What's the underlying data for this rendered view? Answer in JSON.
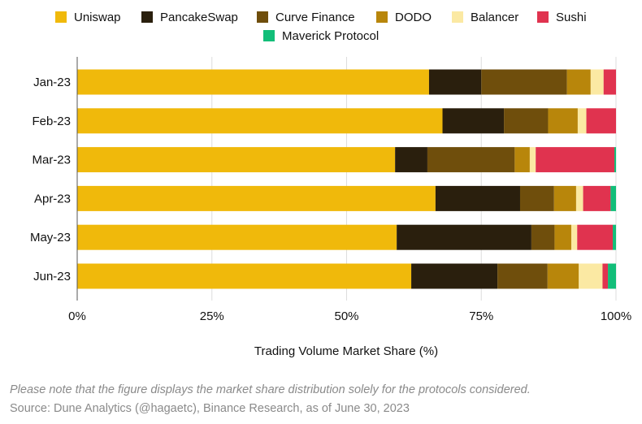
{
  "chart_data": {
    "type": "bar",
    "orientation": "horizontal",
    "stacked": true,
    "categories": [
      "Jan-23",
      "Feb-23",
      "Mar-23",
      "Apr-23",
      "May-23",
      "Jun-23"
    ],
    "series": [
      {
        "name": "Uniswap",
        "color": "#F0B90B",
        "values": [
          65.3,
          67.8,
          59.0,
          66.5,
          59.3,
          62.0
        ]
      },
      {
        "name": "PancakeSwap",
        "color": "#2A1F0D",
        "values": [
          9.7,
          11.4,
          6.0,
          15.7,
          25.0,
          16.0
        ]
      },
      {
        "name": "Curve Finance",
        "color": "#6F4E0C",
        "values": [
          15.9,
          8.2,
          16.2,
          6.3,
          4.3,
          9.3
        ]
      },
      {
        "name": "DODO",
        "color": "#B8860B",
        "values": [
          4.4,
          5.5,
          2.8,
          4.1,
          3.1,
          5.8
        ]
      },
      {
        "name": "Balancer",
        "color": "#FBE9A3",
        "values": [
          2.4,
          1.6,
          1.1,
          1.3,
          1.1,
          4.4
        ]
      },
      {
        "name": "Sushi",
        "color": "#E0334F",
        "values": [
          2.3,
          5.5,
          14.6,
          5.1,
          6.6,
          1.0
        ]
      },
      {
        "name": "Maverick Protocol",
        "color": "#12BE79",
        "values": [
          0.0,
          0.0,
          0.3,
          1.0,
          0.6,
          1.5
        ]
      }
    ],
    "xlabel": "Trading Volume Market Share (%)",
    "ylabel": "",
    "xlim": [
      0,
      100
    ],
    "xticks": [
      0,
      25,
      50,
      75,
      100
    ],
    "xtick_labels": [
      "0%",
      "25%",
      "50%",
      "75%",
      "100%"
    ],
    "grid": true,
    "legend_position": "top"
  },
  "footer": {
    "note": "Please note that the figure displays the market share distribution solely for the protocols considered.",
    "source": "Source: Dune Analytics (@hagaetc), Binance Research, as of June 30, 2023"
  }
}
